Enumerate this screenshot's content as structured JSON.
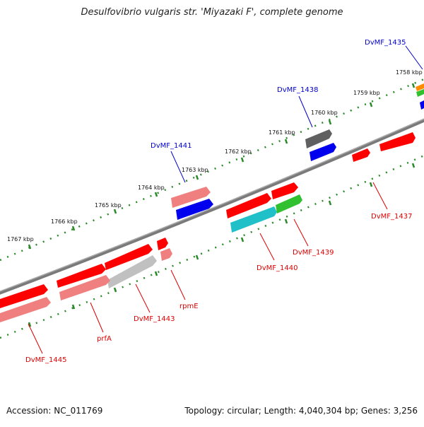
{
  "title": "Desulfovibrio vulgaris str. 'Miyazaki F', complete genome",
  "footer": {
    "accession": "Accession: NC_011769",
    "summary": "Topology: circular; Length: 4,040,304 bp; Genes: 3,256"
  },
  "scale_ticks": [
    "1767 kbp",
    "1766 kbp",
    "1765 kbp",
    "1764 kbp",
    "1763 kbp",
    "1762 kbp",
    "1761 kbp",
    "1760 kbp",
    "1759 kbp",
    "1758 kbp"
  ],
  "gene_labels": {
    "dvmf_1435": "DvMF_1435",
    "dvmf_1438": "DvMF_1438",
    "dvmf_1441": "DvMF_1441",
    "dvmf_1437": "DvMF_1437",
    "dvmf_1439": "DvMF_1439",
    "dvmf_1440": "DvMF_1440",
    "rpme": "rpmE",
    "dvmf_1443": "DvMF_1443",
    "prfa": "prfA",
    "dvmf_1445": "DvMF_1445"
  },
  "colors": {
    "backbone": "#808080",
    "cds_red": "#ff0000",
    "cds_pink": "#f08080",
    "blue": "#0000ee",
    "cyan": "#20c0c8",
    "green": "#30c030",
    "dark_gray": "#606060",
    "light_gray": "#c0c0c0",
    "tick_green": "#2a8a2a",
    "label_red": "#dd0000",
    "label_blue": "#0000cc"
  }
}
